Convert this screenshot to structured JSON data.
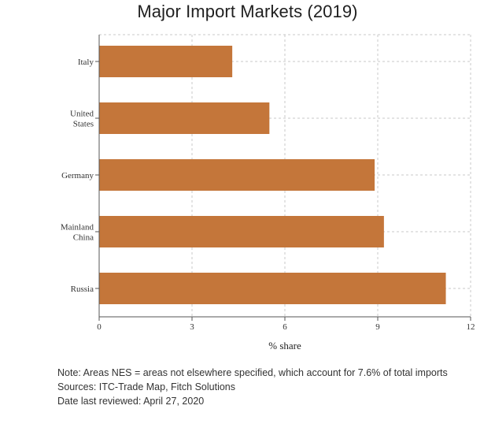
{
  "chart_data": {
    "type": "bar",
    "orientation": "horizontal",
    "title": "Major Import Markets (2019)",
    "xlabel": "% share",
    "ylabel": "",
    "categories": [
      "Italy",
      "United States",
      "Germany",
      "Mainland China",
      "Russia"
    ],
    "category_lines": [
      [
        "Italy"
      ],
      [
        "United",
        "States"
      ],
      [
        "Germany"
      ],
      [
        "Mainland",
        "China"
      ],
      [
        "Russia"
      ]
    ],
    "values": [
      4.3,
      5.5,
      8.9,
      9.2,
      11.2
    ],
    "xlim": [
      0,
      12
    ],
    "xticks": [
      0,
      3,
      6,
      9,
      12
    ],
    "grid": true,
    "bar_color": "#c4763a"
  },
  "footer": {
    "note": "Note: Areas NES = areas not elsewhere specified, which account for 7.6% of total imports",
    "sources": "Sources: ITC-Trade Map, Fitch Solutions",
    "reviewed": "Date last reviewed: April 27, 2020"
  }
}
